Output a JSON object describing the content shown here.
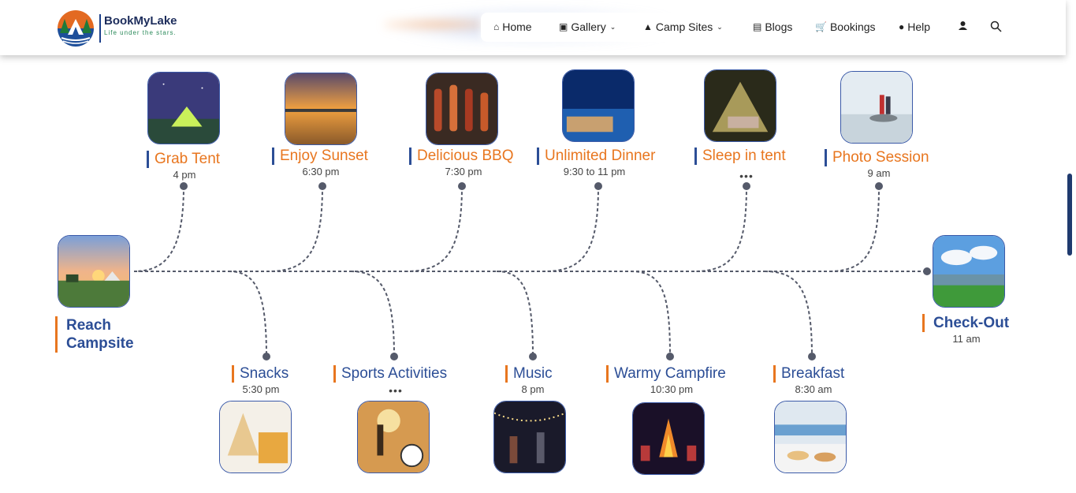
{
  "brand": {
    "name": "BookMyLake",
    "tagline": "Life under the stars."
  },
  "nav": {
    "home": "Home",
    "gallery": "Gallery",
    "camp_sites": "Camp Sites",
    "blogs": "Blogs",
    "bookings": "Bookings",
    "help": "Help"
  },
  "timeline": {
    "start": {
      "label": "Reach Campsite"
    },
    "end": {
      "label": "Check-Out",
      "time": "11 am"
    },
    "top": [
      {
        "title": "Grab Tent",
        "time": "4 pm"
      },
      {
        "title": "Enjoy Sunset",
        "time": "6:30 pm"
      },
      {
        "title": "Delicious BBQ",
        "time": "7:30 pm"
      },
      {
        "title": "Unlimited Dinner",
        "time": "9:30 to 11 pm"
      },
      {
        "title": "Sleep in tent",
        "time": "•••"
      },
      {
        "title": "Photo Session",
        "time": "9 am"
      }
    ],
    "bottom": [
      {
        "title": "Snacks",
        "time": "5:30 pm"
      },
      {
        "title": "Sports Activities",
        "time": "•••"
      },
      {
        "title": "Music",
        "time": "8 pm"
      },
      {
        "title": "Warmy Campfire",
        "time": "10:30 pm"
      },
      {
        "title": "Breakfast",
        "time": "8:30 am"
      }
    ]
  },
  "colors": {
    "accent_orange": "#e8761f",
    "accent_blue": "#2c4e96",
    "line": "#555a6a"
  }
}
